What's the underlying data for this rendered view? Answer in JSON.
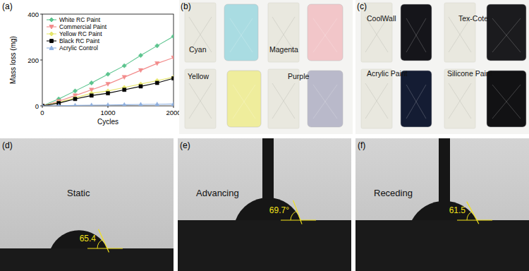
{
  "chart_data": {
    "type": "line",
    "panel_label": "(a)",
    "x_label": "Cycles",
    "y_label": "Mass loss (mg)",
    "x": [
      0,
      250,
      500,
      750,
      1000,
      1250,
      1500,
      1750,
      2000
    ],
    "xlim": [
      0,
      2000
    ],
    "xticks": [
      0,
      1000,
      2000
    ],
    "ylim": [
      0,
      400
    ],
    "yticks": [
      0,
      200,
      400
    ],
    "legend": "upper-left",
    "series": [
      {
        "name": "White RC Paint",
        "color": "#5cc48e",
        "marker": "diamond",
        "values": [
          0,
          30,
          65,
          100,
          138,
          175,
          220,
          262,
          303
        ]
      },
      {
        "name": "Commercial Paint",
        "color": "#f28b8b",
        "marker": "triangle-down",
        "values": [
          0,
          20,
          45,
          70,
          95,
          125,
          155,
          185,
          210
        ]
      },
      {
        "name": "Yellow RC Paint",
        "color": "#e6e66e",
        "marker": "diamond",
        "values": [
          0,
          15,
          35,
          55,
          65,
          80,
          95,
          110,
          125
        ]
      },
      {
        "name": "Black RC Paint",
        "color": "#000000",
        "marker": "square",
        "values": [
          0,
          12,
          30,
          45,
          55,
          70,
          85,
          100,
          120
        ]
      },
      {
        "name": "Acrylic Control",
        "color": "#8fb0e0",
        "marker": "triangle-up",
        "values": [
          0,
          1,
          2,
          3,
          4,
          5,
          6,
          7,
          8
        ]
      }
    ]
  },
  "photos": [
    {
      "panel_label": "(b)",
      "samples": [
        {
          "label": "Cyan",
          "color": "#a9dce2"
        },
        {
          "label": "Magenta",
          "color": "#f2c6c9"
        },
        {
          "label": "Yellow",
          "color": "#efed9c"
        },
        {
          "label": "Purple",
          "color": "#b9b9ca"
        }
      ]
    },
    {
      "panel_label": "(c)",
      "samples": [
        {
          "label": "CoolWall",
          "color": "#15151a"
        },
        {
          "label": "Tex-Cote",
          "color": "#1b1b1e"
        },
        {
          "label": "Acrylic Paint",
          "color": "#141c33"
        },
        {
          "label": "Silicone Paint",
          "color": "#121214"
        }
      ]
    }
  ],
  "contact_angles": [
    {
      "panel_label": "(d)",
      "label": "Static",
      "angle": {
        "value": 65.4,
        "label": "65.4"
      }
    },
    {
      "panel_label": "(e)",
      "label": "Advancing",
      "angle": {
        "value": 69.7,
        "label": "69.7°"
      }
    },
    {
      "panel_label": "(f)",
      "label": "Receding",
      "angle": {
        "value": 61.5,
        "label": "61.5"
      }
    }
  ]
}
